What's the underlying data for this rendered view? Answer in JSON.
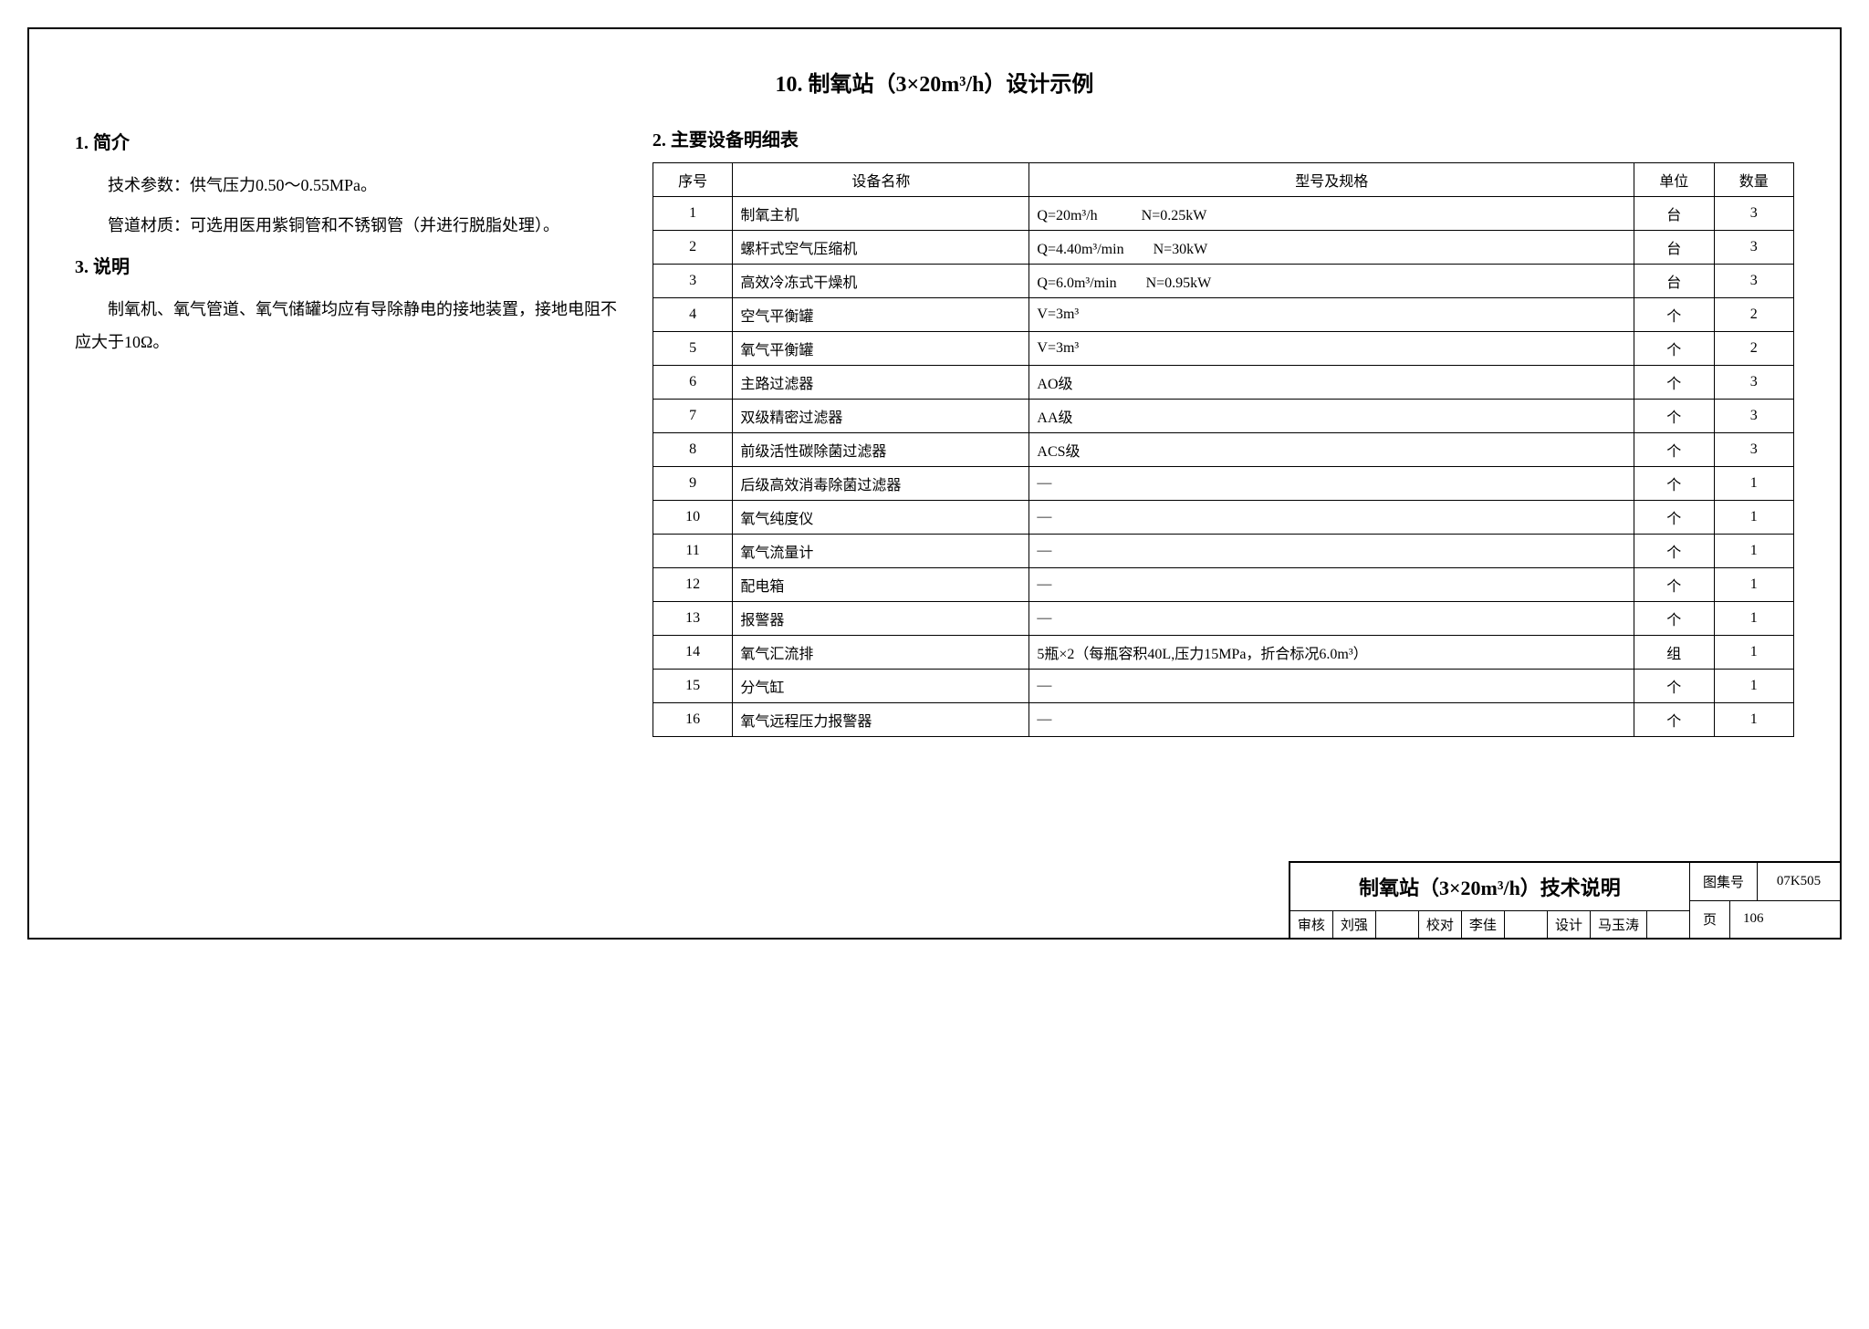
{
  "mainTitle": "10. 制氧站（3×20m³/h）设计示例",
  "section1": {
    "heading": "1. 简介",
    "p1": "技术参数：供气压力0.50～0.55MPa。",
    "p2": "管道材质：可选用医用紫铜管和不锈钢管（并进行脱脂处理）。"
  },
  "section3": {
    "heading": "3. 说明",
    "p1": "制氧机、氧气管道、氧气储罐均应有导除静电的接地装置，接地电阻不应大于10Ω。"
  },
  "section2": {
    "heading": "2. 主要设备明细表"
  },
  "table": {
    "headers": [
      "序号",
      "设备名称",
      "型号及规格",
      "单位",
      "数量"
    ],
    "rows": [
      {
        "no": "1",
        "name": "制氧主机",
        "spec": "Q=20m³/h　　　N=0.25kW",
        "unit": "台",
        "qty": "3"
      },
      {
        "no": "2",
        "name": "螺杆式空气压缩机",
        "spec": "Q=4.40m³/min　　N=30kW",
        "unit": "台",
        "qty": "3"
      },
      {
        "no": "3",
        "name": "高效冷冻式干燥机",
        "spec": "Q=6.0m³/min　　N=0.95kW",
        "unit": "台",
        "qty": "3"
      },
      {
        "no": "4",
        "name": "空气平衡罐",
        "spec": "V=3m³",
        "unit": "个",
        "qty": "2"
      },
      {
        "no": "5",
        "name": "氧气平衡罐",
        "spec": "V=3m³",
        "unit": "个",
        "qty": "2"
      },
      {
        "no": "6",
        "name": "主路过滤器",
        "spec": "AO级",
        "unit": "个",
        "qty": "3"
      },
      {
        "no": "7",
        "name": "双级精密过滤器",
        "spec": "AA级",
        "unit": "个",
        "qty": "3"
      },
      {
        "no": "8",
        "name": "前级活性碳除菌过滤器",
        "spec": "ACS级",
        "unit": "个",
        "qty": "3"
      },
      {
        "no": "9",
        "name": "后级高效消毒除菌过滤器",
        "spec": "—",
        "unit": "个",
        "qty": "1"
      },
      {
        "no": "10",
        "name": "氧气纯度仪",
        "spec": "—",
        "unit": "个",
        "qty": "1"
      },
      {
        "no": "11",
        "name": "氧气流量计",
        "spec": "—",
        "unit": "个",
        "qty": "1"
      },
      {
        "no": "12",
        "name": "配电箱",
        "spec": "—",
        "unit": "个",
        "qty": "1"
      },
      {
        "no": "13",
        "name": "报警器",
        "spec": "—",
        "unit": "个",
        "qty": "1"
      },
      {
        "no": "14",
        "name": "氧气汇流排",
        "spec": "5瓶×2（每瓶容积40L,压力15MPa，折合标况6.0m³）",
        "unit": "组",
        "qty": "1"
      },
      {
        "no": "15",
        "name": "分气缸",
        "spec": "—",
        "unit": "个",
        "qty": "1"
      },
      {
        "no": "16",
        "name": "氧气远程压力报警器",
        "spec": "—",
        "unit": "个",
        "qty": "1"
      }
    ]
  },
  "titleBlock": {
    "title": "制氧站（3×20m³/h）技术说明",
    "labels": {
      "review": "审核",
      "reviewName": "刘强",
      "check": "校对",
      "checkName": "李佳",
      "design": "设计",
      "designName": "马玉涛",
      "atlas": "图集号",
      "atlasNo": "07K505",
      "page": "页",
      "pageNo": "106"
    }
  }
}
